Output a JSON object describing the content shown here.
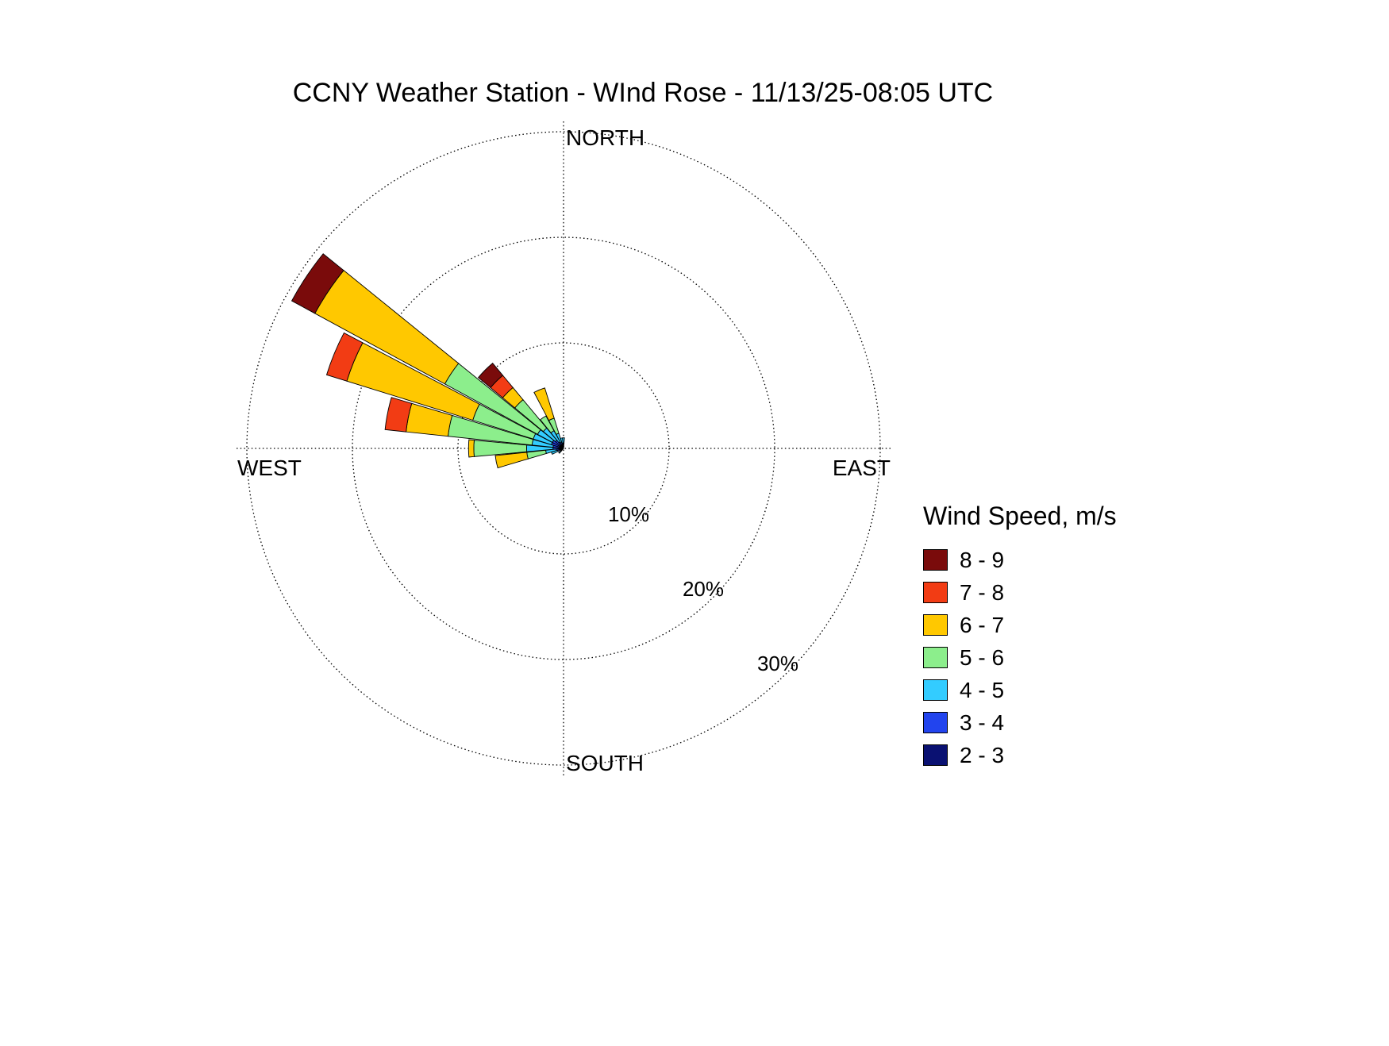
{
  "title": "CCNY Weather Station - WInd Rose -  11/13/25-08:05 UTC",
  "compass": {
    "north": "NORTH",
    "south": "SOUTH",
    "east": "EAST",
    "west": "WEST"
  },
  "rings": [
    {
      "pct": 10,
      "label": "10%"
    },
    {
      "pct": 20,
      "label": "20%"
    },
    {
      "pct": 30,
      "label": "30%"
    }
  ],
  "legend": {
    "title": "Wind Speed, m/s",
    "items": [
      {
        "label": "8 - 9",
        "color": "#7a0b0b"
      },
      {
        "label": "7 - 8",
        "color": "#f23c14"
      },
      {
        "label": "6 - 7",
        "color": "#ffc800"
      },
      {
        "label": "5 - 6",
        "color": "#8cee8c"
      },
      {
        "label": "4 - 5",
        "color": "#33ccff"
      },
      {
        "label": "3 - 4",
        "color": "#2244ee"
      },
      {
        "label": "2 - 3",
        "color": "#0a1172"
      }
    ]
  },
  "chart_data": {
    "type": "wind-rose",
    "title": "CCNY Weather Station - WInd Rose -  11/13/25-08:05 UTC",
    "units": "percent frequency of wind direction",
    "radial_ticks_pct": [
      10,
      20,
      30
    ],
    "sector_width_deg": 10.5,
    "legend_position": "right",
    "grid": "dotted polar, N/S/E/W axes",
    "speed_bins": [
      {
        "label": "2 - 3",
        "color": "#0a1172"
      },
      {
        "label": "3 - 4",
        "color": "#2244ee"
      },
      {
        "label": "4 - 5",
        "color": "#33ccff"
      },
      {
        "label": "5 - 6",
        "color": "#8cee8c"
      },
      {
        "label": "6 - 7",
        "color": "#ffc800"
      },
      {
        "label": "7 - 8",
        "color": "#f23c14"
      },
      {
        "label": "8 - 9",
        "color": "#7a0b0b"
      }
    ],
    "petals": [
      {
        "direction_deg": 0,
        "values": [
          0.2,
          0.3,
          0.5,
          0,
          0,
          0,
          0
        ]
      },
      {
        "direction_deg": 348.75,
        "values": [
          0.2,
          0.3,
          0.5,
          0,
          0,
          0,
          0
        ]
      },
      {
        "direction_deg": 337.5,
        "values": [
          0.2,
          0.4,
          0.9,
          1.5,
          3.0,
          0,
          0
        ]
      },
      {
        "direction_deg": 326.25,
        "values": [
          0.2,
          0.5,
          1.2,
          1.6,
          0,
          0,
          0
        ]
      },
      {
        "direction_deg": 315,
        "values": [
          0.3,
          0.7,
          1.5,
          3.5,
          1.5,
          1.5,
          1.5
        ]
      },
      {
        "direction_deg": 303.75,
        "values": [
          0.4,
          0.8,
          1.6,
          10.0,
          14.0,
          0,
          2.5
        ]
      },
      {
        "direction_deg": 292.5,
        "values": [
          0.4,
          0.8,
          1.8,
          6.0,
          12.5,
          2.0,
          0
        ]
      },
      {
        "direction_deg": 281.25,
        "values": [
          0.3,
          0.7,
          2.0,
          8.0,
          4.0,
          2.0,
          0
        ]
      },
      {
        "direction_deg": 270,
        "values": [
          0.3,
          0.7,
          2.5,
          5.0,
          0.5,
          0,
          0
        ]
      },
      {
        "direction_deg": 258.75,
        "values": [
          0.2,
          0.5,
          1.0,
          1.8,
          3.0,
          0,
          0
        ]
      },
      {
        "direction_deg": 247.5,
        "values": [
          0.2,
          0.4,
          0.6,
          0,
          0,
          0,
          0
        ]
      },
      {
        "direction_deg": 225,
        "values": [
          0.1,
          0.2,
          0.3,
          0,
          0,
          0,
          0
        ]
      }
    ]
  }
}
